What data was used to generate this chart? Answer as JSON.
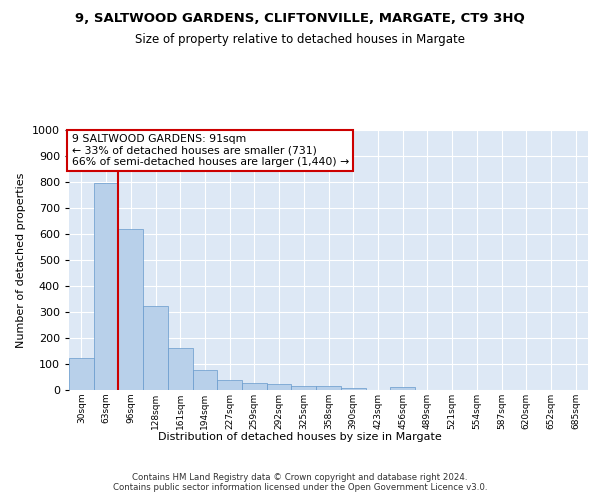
{
  "title": "9, SALTWOOD GARDENS, CLIFTONVILLE, MARGATE, CT9 3HQ",
  "subtitle": "Size of property relative to detached houses in Margate",
  "xlabel": "Distribution of detached houses by size in Margate",
  "ylabel": "Number of detached properties",
  "bar_color": "#b8d0ea",
  "bar_edge_color": "#6699cc",
  "vline_color": "#cc0000",
  "vline_x_index": 1.5,
  "categories": [
    "30sqm",
    "63sqm",
    "96sqm",
    "128sqm",
    "161sqm",
    "194sqm",
    "227sqm",
    "259sqm",
    "292sqm",
    "325sqm",
    "358sqm",
    "390sqm",
    "423sqm",
    "456sqm",
    "489sqm",
    "521sqm",
    "554sqm",
    "587sqm",
    "620sqm",
    "652sqm",
    "685sqm"
  ],
  "values": [
    125,
    795,
    620,
    325,
    162,
    78,
    40,
    27,
    23,
    17,
    15,
    8,
    0,
    10,
    0,
    0,
    0,
    0,
    0,
    0,
    0
  ],
  "ylim": [
    0,
    1000
  ],
  "yticks": [
    0,
    100,
    200,
    300,
    400,
    500,
    600,
    700,
    800,
    900,
    1000
  ],
  "annotation_text": "9 SALTWOOD GARDENS: 91sqm\n← 33% of detached houses are smaller (731)\n66% of semi-detached houses are larger (1,440) →",
  "annotation_box_color": "#ffffff",
  "annotation_box_edge": "#cc0000",
  "footer": "Contains HM Land Registry data © Crown copyright and database right 2024.\nContains public sector information licensed under the Open Government Licence v3.0.",
  "background_color": "#dde8f5",
  "grid_color": "#ffffff",
  "fig_bg_color": "#ffffff"
}
